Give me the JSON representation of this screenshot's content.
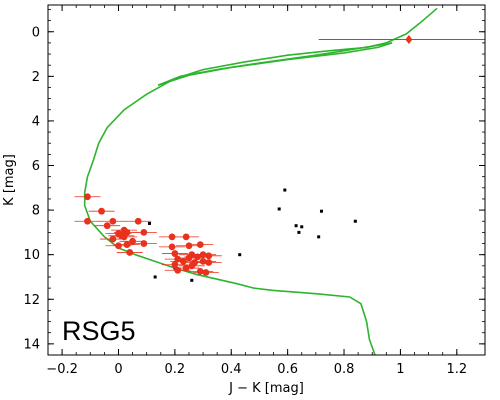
{
  "chart_data": {
    "type": "scatter",
    "title": "",
    "xlabel": "J − K [mag]",
    "ylabel": "K [mag]",
    "xlim": [
      -0.25,
      1.3
    ],
    "ylim": [
      14.5,
      -1.2
    ],
    "y_inverted": true,
    "xticks": [
      -0.2,
      0.0,
      0.2,
      0.4,
      0.6,
      0.8,
      1.0,
      1.2
    ],
    "xtick_labels": [
      "−0.2",
      "0",
      "0.2",
      "0.4",
      "0.6",
      "0.8",
      "1",
      "1.2"
    ],
    "yticks": [
      0,
      2,
      4,
      6,
      8,
      10,
      12,
      14
    ],
    "ytick_labels": [
      "0",
      "2",
      "4",
      "6",
      "8",
      "10",
      "12",
      "14"
    ],
    "grid": false,
    "legend": "none",
    "annotation": "RSG5",
    "colors": {
      "members": "#e8321e",
      "field": "#000000",
      "isochrone": "#2db52d",
      "reference": "#e8321e"
    },
    "series": [
      {
        "kind": "isochrone",
        "points": [
          [
            0.91,
            14.5
          ],
          [
            0.89,
            13.8
          ],
          [
            0.88,
            13.0
          ],
          [
            0.86,
            12.2
          ],
          [
            0.82,
            11.9
          ],
          [
            0.7,
            11.75
          ],
          [
            0.55,
            11.6
          ],
          [
            0.48,
            11.5
          ],
          [
            0.42,
            11.3
          ],
          [
            0.35,
            11.1
          ],
          [
            0.28,
            10.9
          ],
          [
            0.2,
            10.6
          ],
          [
            0.13,
            10.3
          ],
          [
            0.06,
            10.0
          ],
          [
            0.0,
            9.7
          ],
          [
            -0.05,
            9.2
          ],
          [
            -0.1,
            8.5
          ],
          [
            -0.12,
            7.8
          ],
          [
            -0.12,
            7.2
          ],
          [
            -0.11,
            6.5
          ],
          [
            -0.09,
            5.8
          ],
          [
            -0.08,
            5.4
          ],
          [
            -0.07,
            5.0
          ],
          [
            -0.04,
            4.3
          ],
          [
            0.02,
            3.5
          ],
          [
            0.1,
            2.8
          ],
          [
            0.2,
            2.1
          ],
          [
            0.3,
            1.7
          ],
          [
            0.45,
            1.35
          ],
          [
            0.6,
            1.05
          ],
          [
            0.75,
            0.85
          ],
          [
            0.88,
            0.7
          ],
          [
            0.95,
            0.5
          ],
          [
            1.02,
            0.1
          ],
          [
            1.07,
            -0.4
          ],
          [
            1.13,
            -1.05
          ]
        ]
      },
      {
        "kind": "isochrone",
        "points": [
          [
            0.14,
            2.4
          ],
          [
            0.25,
            1.95
          ],
          [
            0.4,
            1.6
          ],
          [
            0.6,
            1.25
          ],
          [
            0.8,
            0.95
          ],
          [
            0.92,
            0.7
          ],
          [
            0.97,
            0.5
          ]
        ]
      },
      {
        "kind": "isochrone",
        "points": [
          [
            0.97,
            0.5
          ],
          [
            0.85,
            0.75
          ],
          [
            0.7,
            1.05
          ],
          [
            0.5,
            1.4
          ],
          [
            0.35,
            1.7
          ],
          [
            0.22,
            2.0
          ],
          [
            0.14,
            2.4
          ]
        ]
      },
      {
        "kind": "field",
        "points": [
          [
            0.59,
            7.1
          ],
          [
            0.57,
            7.95
          ],
          [
            0.72,
            8.05
          ],
          [
            0.84,
            8.5
          ],
          [
            0.63,
            8.7
          ],
          [
            0.65,
            8.75
          ],
          [
            0.64,
            9.0
          ],
          [
            0.71,
            9.2
          ],
          [
            0.11,
            8.6
          ],
          [
            0.43,
            10.0
          ],
          [
            0.2,
            10.6
          ],
          [
            0.13,
            11.0
          ],
          [
            0.26,
            11.15
          ]
        ]
      },
      {
        "kind": "members",
        "points": [
          [
            -0.11,
            7.4
          ],
          [
            -0.06,
            8.05
          ],
          [
            -0.11,
            8.5
          ],
          [
            -0.02,
            8.5
          ],
          [
            -0.04,
            8.7
          ],
          [
            0.07,
            8.5
          ],
          [
            0.02,
            8.9
          ],
          [
            0.03,
            9.0
          ],
          [
            0.09,
            9.0
          ],
          [
            0.0,
            9.05
          ],
          [
            0.01,
            9.15
          ],
          [
            0.02,
            9.2
          ],
          [
            -0.02,
            9.3
          ],
          [
            0.05,
            9.4
          ],
          [
            0.09,
            9.5
          ],
          [
            0.03,
            9.55
          ],
          [
            0.0,
            9.6
          ],
          [
            0.04,
            9.9
          ],
          [
            0.19,
            9.2
          ],
          [
            0.24,
            9.2
          ],
          [
            0.29,
            9.55
          ],
          [
            0.25,
            9.6
          ],
          [
            0.19,
            9.65
          ],
          [
            0.2,
            9.95
          ],
          [
            0.26,
            10.0
          ],
          [
            0.3,
            10.0
          ],
          [
            0.32,
            10.05
          ],
          [
            0.28,
            10.1
          ],
          [
            0.25,
            10.15
          ],
          [
            0.21,
            10.2
          ],
          [
            0.23,
            10.3
          ],
          [
            0.3,
            10.3
          ],
          [
            0.27,
            10.35
          ],
          [
            0.32,
            10.35
          ],
          [
            0.2,
            10.45
          ],
          [
            0.26,
            10.5
          ],
          [
            0.24,
            10.6
          ],
          [
            0.21,
            10.7
          ],
          [
            0.29,
            10.75
          ],
          [
            0.31,
            10.8
          ]
        ]
      },
      {
        "kind": "reference",
        "points": [
          [
            1.03,
            0.35
          ]
        ],
        "xerr_range": [
          0.71,
          1.3
        ]
      }
    ]
  }
}
